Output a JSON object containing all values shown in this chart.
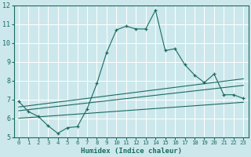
{
  "xlabel": "Humidex (Indice chaleur)",
  "bg_color": "#cce8ec",
  "grid_color": "#ffffff",
  "line_color": "#1a6b60",
  "xlim": [
    -0.5,
    23.5
  ],
  "ylim": [
    5,
    12
  ],
  "xticks": [
    0,
    1,
    2,
    3,
    4,
    5,
    6,
    7,
    8,
    9,
    10,
    11,
    12,
    13,
    14,
    15,
    16,
    17,
    18,
    19,
    20,
    21,
    22,
    23
  ],
  "yticks": [
    5,
    6,
    7,
    8,
    9,
    10,
    11,
    12
  ],
  "series_main": {
    "x": [
      0,
      1,
      2,
      3,
      4,
      5,
      6,
      7,
      8,
      9,
      10,
      11,
      12,
      13,
      14,
      15,
      16,
      17,
      18,
      19,
      20,
      21,
      22,
      23
    ],
    "y": [
      6.9,
      6.35,
      6.1,
      5.6,
      5.2,
      5.5,
      5.55,
      6.5,
      7.85,
      9.5,
      10.7,
      10.9,
      10.75,
      10.75,
      11.75,
      9.6,
      9.7,
      8.85,
      8.3,
      7.9,
      8.35,
      7.25,
      7.25,
      7.05
    ]
  },
  "series_lines": [
    {
      "x": [
        0,
        23
      ],
      "y": [
        6.6,
        8.1
      ]
    },
    {
      "x": [
        0,
        23
      ],
      "y": [
        6.4,
        7.75
      ]
    },
    {
      "x": [
        0,
        23
      ],
      "y": [
        6.0,
        6.85
      ]
    }
  ]
}
